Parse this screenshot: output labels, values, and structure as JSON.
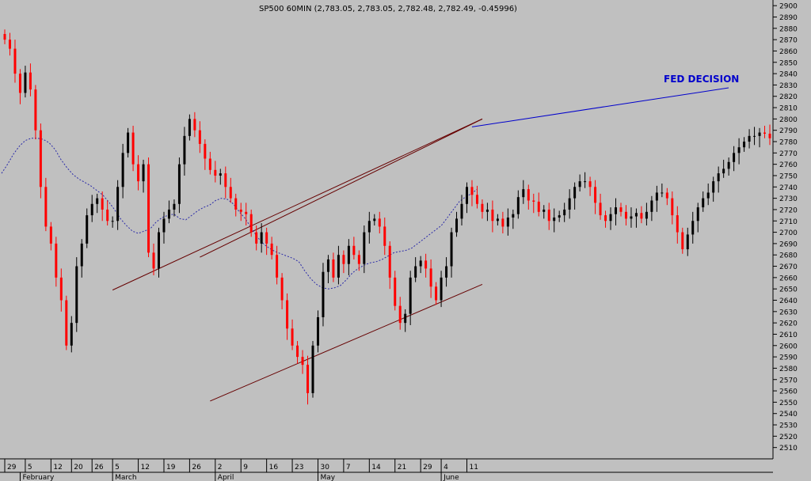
{
  "chart_data": {
    "type": "candlestick",
    "title": "SP500 60MIN (2,783.05, 2,783.05, 2,782.48, 2,782.49, -0.45996)",
    "ylim": [
      2500,
      2905
    ],
    "y_ticks": [
      2510,
      2520,
      2530,
      2540,
      2550,
      2560,
      2570,
      2580,
      2590,
      2600,
      2610,
      2620,
      2630,
      2640,
      2650,
      2660,
      2670,
      2680,
      2690,
      2700,
      2710,
      2720,
      2730,
      2740,
      2750,
      2760,
      2770,
      2780,
      2790,
      2800,
      2810,
      2820,
      2830,
      2840,
      2850,
      2860,
      2870,
      2880,
      2890,
      2900
    ],
    "x_day_labels": [
      {
        "label": "29",
        "index": 0
      },
      {
        "label": "5",
        "index": 4
      },
      {
        "label": "12",
        "index": 9
      },
      {
        "label": "20",
        "index": 13
      },
      {
        "label": "26",
        "index": 17
      },
      {
        "label": "5",
        "index": 21
      },
      {
        "label": "12",
        "index": 26
      },
      {
        "label": "19",
        "index": 31
      },
      {
        "label": "26",
        "index": 36
      },
      {
        "label": "2",
        "index": 41
      },
      {
        "label": "9",
        "index": 46
      },
      {
        "label": "16",
        "index": 51
      },
      {
        "label": "23",
        "index": 56
      },
      {
        "label": "30",
        "index": 61
      },
      {
        "label": "7",
        "index": 66
      },
      {
        "label": "14",
        "index": 71
      },
      {
        "label": "21",
        "index": 76
      },
      {
        "label": "29",
        "index": 81
      },
      {
        "label": "4",
        "index": 85
      },
      {
        "label": "11",
        "index": 90
      }
    ],
    "x_month_labels": [
      {
        "label": "February",
        "index": 3
      },
      {
        "label": "March",
        "index": 21
      },
      {
        "label": "April",
        "index": 41
      },
      {
        "label": "May",
        "index": 61
      },
      {
        "label": "June",
        "index": 85
      }
    ],
    "series": [
      {
        "name": "close",
        "values": [
          2870,
          2862,
          2840,
          2823,
          2841,
          2826,
          2790,
          2740,
          2705,
          2690,
          2660,
          2640,
          2600,
          2620,
          2670,
          2690,
          2715,
          2725,
          2730,
          2720,
          2710,
          2710,
          2740,
          2770,
          2788,
          2760,
          2745,
          2760,
          2682,
          2668,
          2700,
          2712,
          2720,
          2725,
          2760,
          2785,
          2800,
          2790,
          2778,
          2765,
          2755,
          2750,
          2752,
          2740,
          2730,
          2720,
          2718,
          2716,
          2700,
          2690,
          2700,
          2690,
          2680,
          2660,
          2640,
          2615,
          2600,
          2590,
          2583,
          2558,
          2600,
          2625,
          2665,
          2676,
          2660,
          2680,
          2672,
          2688,
          2680,
          2672,
          2700,
          2710,
          2712,
          2705,
          2688,
          2660,
          2635,
          2620,
          2628,
          2660,
          2670,
          2675,
          2668,
          2652,
          2640,
          2660,
          2670,
          2700,
          2712,
          2725,
          2740,
          2733,
          2725,
          2718,
          2720,
          2710,
          2712,
          2705,
          2713,
          2716,
          2731,
          2738,
          2728,
          2727,
          2718,
          2720,
          2710,
          2713,
          2715,
          2720,
          2730,
          2740,
          2745,
          2745,
          2740,
          2726,
          2715,
          2710,
          2716,
          2722,
          2718,
          2712,
          2714,
          2717,
          2712,
          2718,
          2728,
          2735,
          2735,
          2730,
          2715,
          2700,
          2685,
          2698,
          2710,
          2722,
          2730,
          2735,
          2745,
          2752,
          2756,
          2762,
          2770,
          2775,
          2780,
          2785,
          2785,
          2788,
          2787,
          2783
        ]
      },
      {
        "name": "moving-average",
        "values": [
          2752,
          2760,
          2769,
          2776,
          2781,
          2783,
          2783,
          2782,
          2779,
          2773,
          2764,
          2757,
          2751,
          2747,
          2744,
          2741,
          2737,
          2733,
          2727,
          2720,
          2712,
          2706,
          2701,
          2699,
          2701,
          2703,
          2709,
          2713,
          2715,
          2716,
          2712,
          2711,
          2715,
          2719,
          2722,
          2724,
          2728,
          2730,
          2729,
          2725,
          2718,
          2712,
          2704,
          2696,
          2690,
          2686,
          2683,
          2681,
          2679,
          2677,
          2674,
          2666,
          2659,
          2654,
          2651,
          2650,
          2651,
          2653,
          2658,
          2664,
          2668,
          2671,
          2673,
          2674,
          2676,
          2679,
          2682,
          2683,
          2684,
          2686,
          2690,
          2694,
          2698,
          2702,
          2706,
          2713,
          2720,
          2727,
          2731,
          2734,
          2738
        ]
      }
    ],
    "trendlines": [
      {
        "name": "upper-channel",
        "from": {
          "index": 21,
          "value": 2649
        },
        "to": {
          "index": 93,
          "value": 2800
        }
      },
      {
        "name": "lower-channel",
        "from": {
          "index": 40,
          "value": 2551
        },
        "to": {
          "index": 93,
          "value": 2654
        }
      },
      {
        "name": "upper-channel-extension",
        "from": {
          "index": 38,
          "value": 2678
        },
        "to": {
          "index": 93,
          "value": 2800
        }
      }
    ],
    "annotations": [
      {
        "text": "FED DECISION",
        "points_to": {
          "index": 91,
          "value": 2793
        }
      }
    ],
    "colors": {
      "background": "#c0c0c0",
      "up": "#000000",
      "down": "#ff0000",
      "ma": "#2a2aa8",
      "trendline": "#660000",
      "annotation": "#0000cc"
    }
  }
}
